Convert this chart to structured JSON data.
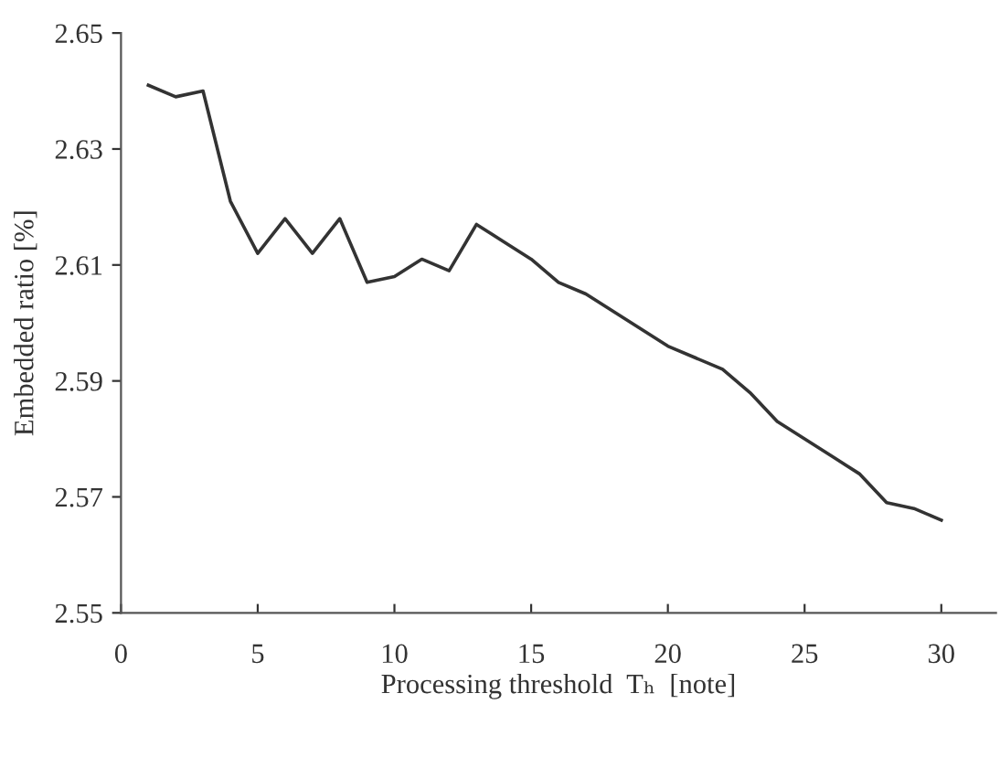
{
  "chart_data": {
    "type": "line",
    "xlabel": "Processing threshold  Tₕ  [note]",
    "ylabel": "Embedded ratio [%]",
    "x": [
      1,
      2,
      3,
      4,
      5,
      6,
      7,
      8,
      9,
      10,
      11,
      12,
      13,
      14,
      15,
      16,
      17,
      18,
      19,
      20,
      21,
      22,
      23,
      24,
      25,
      26,
      27,
      28,
      29,
      30
    ],
    "series": [
      {
        "color": "#333333",
        "values": [
          2.641,
          2.639,
          2.64,
          2.621,
          2.612,
          2.618,
          2.612,
          2.618,
          2.607,
          2.608,
          2.611,
          2.609,
          2.617,
          2.614,
          2.611,
          2.607,
          2.605,
          2.602,
          2.599,
          2.596,
          2.594,
          2.592,
          2.588,
          2.583,
          2.58,
          2.577,
          2.574,
          2.569,
          2.568,
          2.566
        ]
      }
    ],
    "xlim": [
      0,
      32
    ],
    "xticks": [
      0,
      5,
      10,
      15,
      20,
      25,
      30
    ],
    "ylim": [
      2.55,
      2.65
    ],
    "yticks": [
      {
        "value": 2.55,
        "label": "2.55"
      },
      {
        "value": 2.57,
        "label": "2.57"
      },
      {
        "value": 2.59,
        "label": "2.59"
      },
      {
        "value": 2.61,
        "label": "2.61"
      },
      {
        "value": 2.63,
        "label": "2.63"
      },
      {
        "value": 2.65,
        "label": "2.65"
      }
    ],
    "grid": false,
    "legend": false,
    "marker": "none",
    "line_style": "solid"
  }
}
